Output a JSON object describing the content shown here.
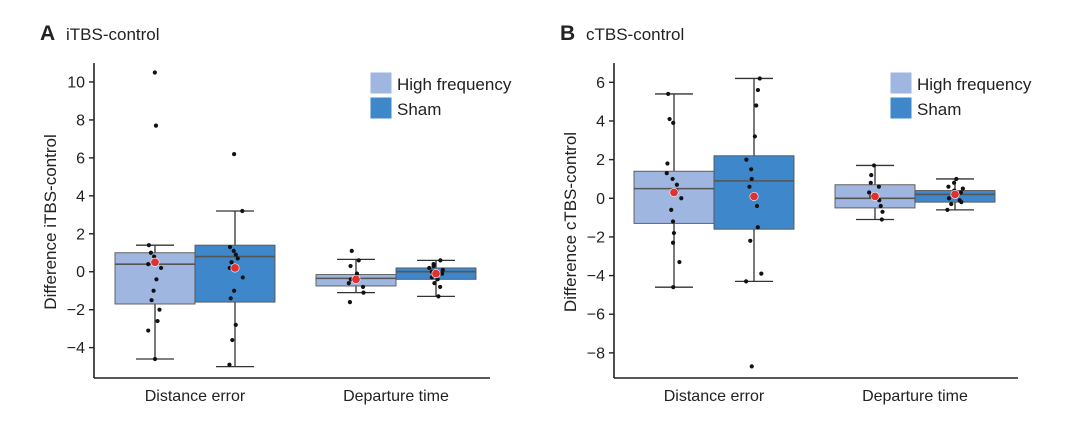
{
  "colors": {
    "high_frequency": "#9fb6e0",
    "sham": "#3f87cb",
    "median_line": "#555555",
    "mean_marker": "#e03030",
    "points": "#111111",
    "axis": "#222222"
  },
  "chart_data": [
    {
      "type": "box",
      "panel_letter": "A",
      "title": "iTBS-control",
      "xlabel": "",
      "ylabel": "Difference iTBS-control",
      "ylim": [
        -5.6,
        11.0
      ],
      "yticks": [
        10,
        8,
        6,
        4,
        2,
        0,
        -2,
        -4
      ],
      "ytick_labels": [
        "10",
        "8",
        "6",
        "4",
        "2",
        "0",
        "−2",
        "−4"
      ],
      "categories": [
        "Distance error",
        "Departure time"
      ],
      "legend": {
        "position": "top-right",
        "entries": [
          "High frequency",
          "Sham"
        ]
      },
      "series": [
        {
          "name": "High frequency",
          "boxes": [
            {
              "q1": -1.7,
              "median": 0.4,
              "q3": 1.0,
              "whisker_low": -4.6,
              "whisker_high": 1.4,
              "mean": 0.5,
              "points": [
                10.5,
                7.7,
                1.4,
                1.0,
                0.8,
                0.6,
                0.4,
                0.2,
                -0.4,
                -1.0,
                -1.5,
                -2.0,
                -2.6,
                -3.1,
                -4.6
              ]
            },
            {
              "q1": -0.75,
              "median": -0.35,
              "q3": -0.15,
              "whisker_low": -1.1,
              "whisker_high": 0.65,
              "mean": -0.4,
              "points": [
                1.1,
                0.6,
                0.3,
                -0.1,
                -0.3,
                -0.4,
                -0.6,
                -0.8,
                -1.1,
                -1.6
              ]
            }
          ]
        },
        {
          "name": "Sham",
          "boxes": [
            {
              "q1": -1.6,
              "median": 0.8,
              "q3": 1.4,
              "whisker_low": -5.0,
              "whisker_high": 3.2,
              "mean": 0.2,
              "points": [
                6.2,
                3.2,
                1.3,
                1.1,
                0.9,
                0.7,
                0.5,
                0.2,
                -0.3,
                -1.0,
                -1.4,
                -2.8,
                -3.6,
                -4.9
              ]
            },
            {
              "q1": -0.4,
              "median": 0.0,
              "q3": 0.2,
              "whisker_low": -1.3,
              "whisker_high": 0.6,
              "mean": -0.1,
              "points": [
                0.6,
                0.4,
                0.3,
                0.2,
                0.1,
                0.0,
                -0.1,
                -0.2,
                -0.3,
                -0.4,
                -0.6,
                -0.8,
                -1.3
              ]
            }
          ]
        }
      ]
    },
    {
      "type": "box",
      "panel_letter": "B",
      "title": "cTBS-control",
      "xlabel": "",
      "ylabel": "Difference cTBS-control",
      "ylim": [
        -9.3,
        7.0
      ],
      "yticks": [
        6,
        4,
        2,
        0,
        -2,
        -4,
        -6,
        -8
      ],
      "ytick_labels": [
        "6",
        "4",
        "2",
        "0",
        "−2",
        "−4",
        "−6",
        "−8"
      ],
      "categories": [
        "Distance error",
        "Departure time"
      ],
      "legend": {
        "position": "top-right",
        "entries": [
          "High frequency",
          "Sham"
        ]
      },
      "series": [
        {
          "name": "High frequency",
          "boxes": [
            {
              "q1": -1.3,
              "median": 0.5,
              "q3": 1.4,
              "whisker_low": -4.6,
              "whisker_high": 5.4,
              "mean": 0.3,
              "points": [
                5.4,
                4.1,
                3.9,
                1.8,
                1.3,
                1.0,
                0.7,
                0.4,
                0.0,
                -0.6,
                -1.2,
                -1.8,
                -2.3,
                -3.3,
                -4.6
              ]
            },
            {
              "q1": -0.5,
              "median": 0.0,
              "q3": 0.7,
              "whisker_low": -1.1,
              "whisker_high": 1.7,
              "mean": 0.1,
              "points": [
                1.7,
                1.2,
                0.8,
                0.6,
                0.3,
                0.1,
                -0.1,
                -0.4,
                -0.7,
                -1.1
              ]
            }
          ]
        },
        {
          "name": "Sham",
          "boxes": [
            {
              "q1": -1.6,
              "median": 0.9,
              "q3": 2.2,
              "whisker_low": -4.3,
              "whisker_high": 6.2,
              "mean": 0.1,
              "points": [
                6.2,
                5.6,
                4.8,
                3.2,
                2.0,
                1.5,
                1.0,
                0.6,
                0.2,
                -0.4,
                -1.5,
                -2.2,
                -3.9,
                -4.3,
                -8.7
              ]
            },
            {
              "q1": -0.2,
              "median": 0.2,
              "q3": 0.4,
              "whisker_low": -0.6,
              "whisker_high": 1.0,
              "mean": 0.2,
              "points": [
                1.0,
                0.8,
                0.6,
                0.5,
                0.4,
                0.3,
                0.2,
                0.1,
                0.0,
                -0.1,
                -0.2,
                -0.3,
                -0.6
              ]
            }
          ]
        }
      ]
    }
  ]
}
